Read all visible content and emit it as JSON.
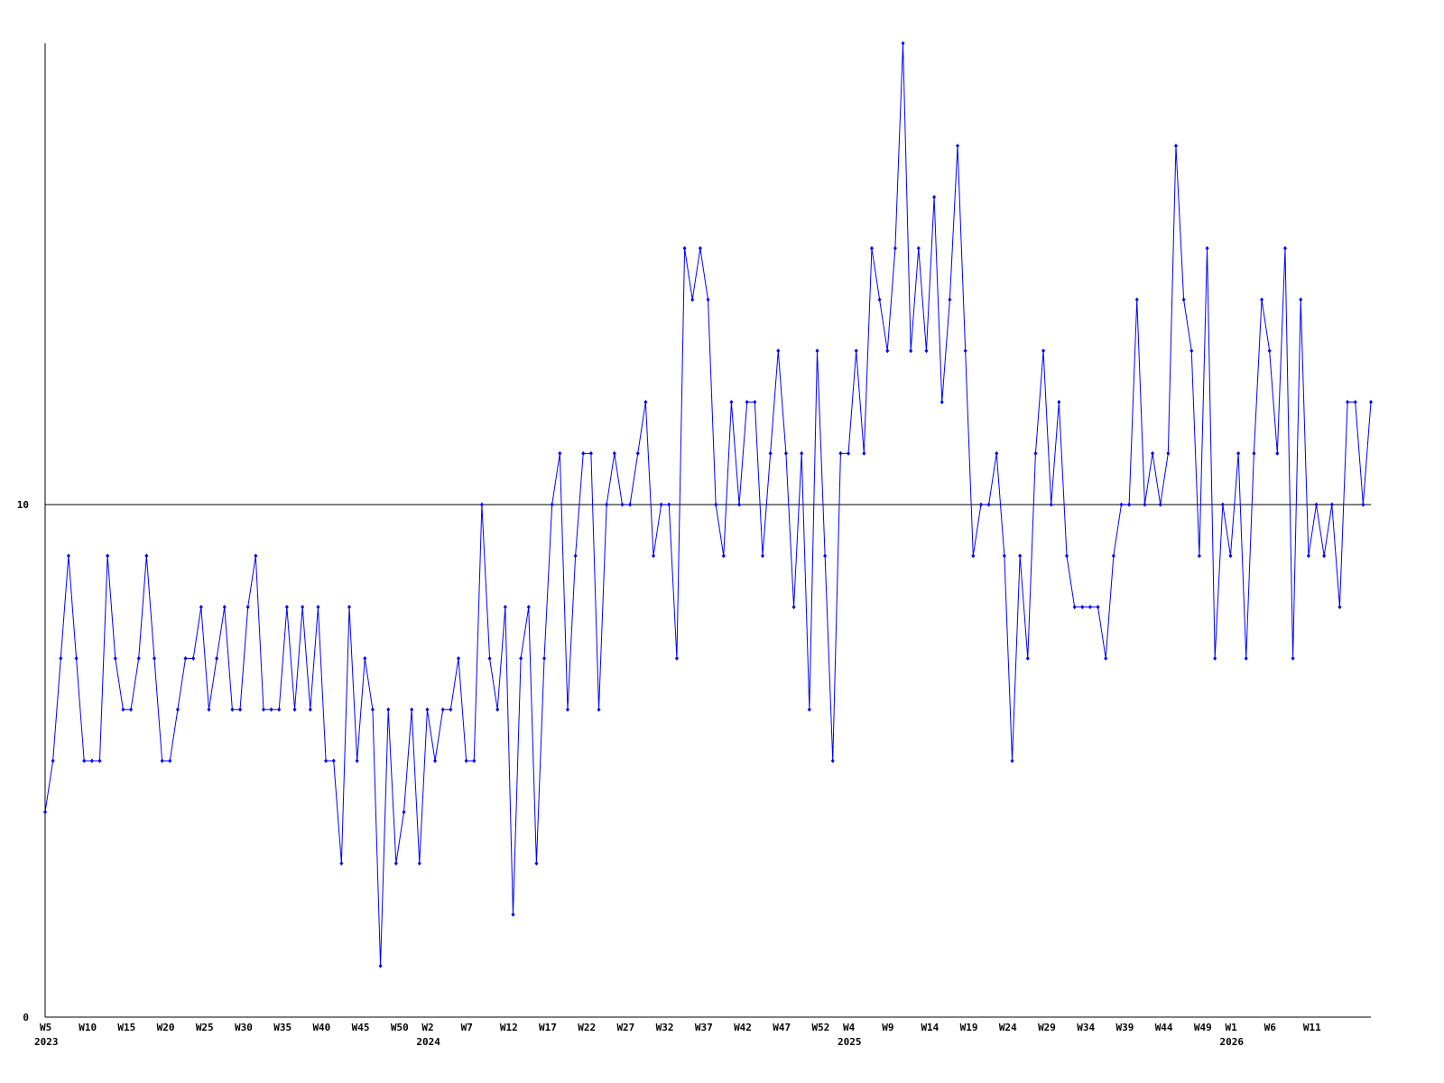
{
  "chart_data": {
    "type": "line",
    "categories": [
      "W5",
      null,
      null,
      null,
      null,
      "W10",
      null,
      null,
      null,
      null,
      "W15",
      null,
      null,
      null,
      null,
      "W20",
      null,
      null,
      null,
      null,
      "W25",
      null,
      null,
      null,
      null,
      "W30",
      null,
      null,
      null,
      null,
      "W35",
      null,
      null,
      null,
      null,
      "W40",
      null,
      null,
      null,
      null,
      "W45",
      null,
      null,
      null,
      null,
      "W50",
      null,
      null,
      null,
      "W2",
      null,
      null,
      null,
      null,
      "W7",
      null,
      null,
      null,
      null,
      "W12",
      null,
      null,
      null,
      null,
      "W17",
      null,
      null,
      null,
      null,
      "W22",
      null,
      null,
      null,
      null,
      "W27",
      null,
      null,
      null,
      null,
      "W32",
      null,
      null,
      null,
      null,
      "W37",
      null,
      null,
      null,
      null,
      "W42",
      null,
      null,
      null,
      null,
      "W47",
      null,
      null,
      null,
      null,
      "W52",
      null,
      null,
      null,
      "W4",
      null,
      null,
      null,
      null,
      "W9",
      null,
      null,
      null,
      null,
      "W14",
      null,
      null,
      null,
      null,
      "W19",
      null,
      null,
      null,
      null,
      "W24",
      null,
      null,
      null,
      null,
      "W29",
      null,
      null,
      null,
      null,
      "W34",
      null,
      null,
      null,
      null,
      "W39",
      null,
      null,
      null,
      null,
      "W44",
      null,
      null,
      null,
      null,
      "W49",
      null,
      null,
      null,
      "W1",
      null,
      null,
      null,
      null,
      "W6",
      null,
      null,
      null,
      null,
      "W11",
      null,
      null,
      null,
      null,
      null,
      null,
      null,
      null
    ],
    "year_labels": [
      {
        "category": 0,
        "label": "2023"
      },
      {
        "category": 49,
        "label": "2024"
      },
      {
        "category": 103,
        "label": "2025"
      },
      {
        "category": 152,
        "label": "2026"
      }
    ],
    "values": [
      4,
      5,
      7,
      9,
      7,
      5,
      5,
      5,
      9,
      7,
      6,
      6,
      7,
      9,
      7,
      5,
      5,
      6,
      7,
      7,
      8,
      6,
      7,
      8,
      6,
      6,
      8,
      9,
      6,
      6,
      6,
      8,
      6,
      8,
      6,
      8,
      5,
      5,
      3,
      8,
      5,
      7,
      6,
      1,
      6,
      3,
      4,
      6,
      3,
      6,
      5,
      6,
      6,
      7,
      5,
      5,
      10,
      7,
      6,
      8,
      2,
      7,
      8,
      3,
      7,
      10,
      11,
      6,
      9,
      11,
      11,
      6,
      10,
      11,
      10,
      10,
      11,
      12,
      9,
      10,
      10,
      7,
      15,
      14,
      15,
      14,
      10,
      9,
      12,
      10,
      12,
      12,
      9,
      11,
      13,
      11,
      8,
      11,
      6,
      13,
      9,
      5,
      11,
      11,
      13,
      11,
      15,
      14,
      13,
      15,
      19,
      13,
      15,
      13,
      16,
      12,
      14,
      17,
      13,
      9,
      10,
      10,
      11,
      9,
      5,
      9,
      7,
      11,
      13,
      10,
      12,
      9,
      8,
      8,
      8,
      8,
      7,
      9,
      10,
      10,
      14,
      10,
      11,
      10,
      11,
      17,
      14,
      13,
      9,
      15,
      7,
      10,
      9,
      11,
      7,
      11,
      14,
      13,
      11,
      15,
      7,
      14,
      9,
      10,
      9,
      10,
      8,
      12,
      12,
      10,
      12
    ],
    "color": "#0000ff",
    "ylim": [
      0,
      19
    ],
    "yticks": [
      0,
      10
    ],
    "grid": true
  }
}
